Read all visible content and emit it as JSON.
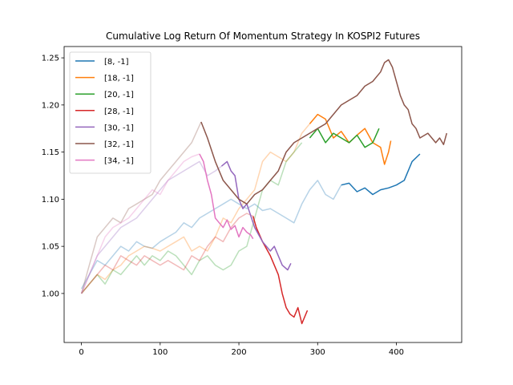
{
  "chart_data": {
    "type": "line",
    "title": "Cumulative Log Return Of Momentum Strategy In KOSPI2 Futures",
    "xlabel": "",
    "ylabel": "",
    "xlim": [
      -22,
      483
    ],
    "ylim": [
      0.948,
      1.262
    ],
    "xticks": [
      0,
      100,
      200,
      300,
      400
    ],
    "yticks": [
      1.0,
      1.05,
      1.1,
      1.15,
      1.2,
      1.25
    ],
    "ytick_labels": [
      "1.00",
      "1.05",
      "1.10",
      "1.15",
      "1.20",
      "1.25"
    ],
    "grid": false,
    "legend_position": "upper-left",
    "series": [
      {
        "name": "[8, -1]",
        "color": "#1f77b4",
        "faded_until": 330,
        "points": [
          [
            0,
            1.005
          ],
          [
            10,
            1.02
          ],
          [
            20,
            1.035
          ],
          [
            30,
            1.03
          ],
          [
            40,
            1.04
          ],
          [
            50,
            1.05
          ],
          [
            60,
            1.045
          ],
          [
            70,
            1.055
          ],
          [
            80,
            1.05
          ],
          [
            90,
            1.048
          ],
          [
            100,
            1.055
          ],
          [
            110,
            1.06
          ],
          [
            120,
            1.065
          ],
          [
            130,
            1.075
          ],
          [
            140,
            1.07
          ],
          [
            150,
            1.08
          ],
          [
            160,
            1.085
          ],
          [
            170,
            1.09
          ],
          [
            180,
            1.095
          ],
          [
            190,
            1.1
          ],
          [
            200,
            1.095
          ],
          [
            210,
            1.09
          ],
          [
            220,
            1.095
          ],
          [
            230,
            1.088
          ],
          [
            240,
            1.09
          ],
          [
            250,
            1.085
          ],
          [
            260,
            1.08
          ],
          [
            270,
            1.075
          ],
          [
            280,
            1.095
          ],
          [
            290,
            1.11
          ],
          [
            300,
            1.12
          ],
          [
            310,
            1.105
          ],
          [
            320,
            1.1
          ],
          [
            330,
            1.115
          ],
          [
            340,
            1.117
          ],
          [
            350,
            1.108
          ],
          [
            360,
            1.112
          ],
          [
            370,
            1.105
          ],
          [
            380,
            1.11
          ],
          [
            390,
            1.112
          ],
          [
            400,
            1.115
          ],
          [
            410,
            1.12
          ],
          [
            420,
            1.14
          ],
          [
            430,
            1.148
          ]
        ]
      },
      {
        "name": "[18, -1]",
        "color": "#ff7f0e",
        "faded_until": 290,
        "points": [
          [
            0,
            1.0
          ],
          [
            10,
            1.01
          ],
          [
            20,
            1.02
          ],
          [
            30,
            1.015
          ],
          [
            40,
            1.025
          ],
          [
            50,
            1.03
          ],
          [
            60,
            1.04
          ],
          [
            70,
            1.045
          ],
          [
            80,
            1.05
          ],
          [
            90,
            1.048
          ],
          [
            100,
            1.045
          ],
          [
            110,
            1.05
          ],
          [
            120,
            1.055
          ],
          [
            130,
            1.06
          ],
          [
            140,
            1.045
          ],
          [
            150,
            1.05
          ],
          [
            160,
            1.045
          ],
          [
            170,
            1.06
          ],
          [
            180,
            1.08
          ],
          [
            190,
            1.075
          ],
          [
            200,
            1.09
          ],
          [
            210,
            1.1
          ],
          [
            220,
            1.11
          ],
          [
            230,
            1.14
          ],
          [
            240,
            1.15
          ],
          [
            250,
            1.145
          ],
          [
            260,
            1.14
          ],
          [
            270,
            1.15
          ],
          [
            280,
            1.17
          ],
          [
            290,
            1.18
          ],
          [
            300,
            1.19
          ],
          [
            310,
            1.185
          ],
          [
            320,
            1.165
          ],
          [
            330,
            1.172
          ],
          [
            340,
            1.16
          ],
          [
            350,
            1.168
          ],
          [
            360,
            1.175
          ],
          [
            370,
            1.16
          ],
          [
            380,
            1.155
          ],
          [
            385,
            1.137
          ],
          [
            390,
            1.15
          ],
          [
            393,
            1.162
          ]
        ]
      },
      {
        "name": "[20, -1]",
        "color": "#2ca02c",
        "faded_until": 282,
        "points": [
          [
            0,
            1.0
          ],
          [
            10,
            1.01
          ],
          [
            20,
            1.02
          ],
          [
            30,
            1.01
          ],
          [
            40,
            1.025
          ],
          [
            50,
            1.02
          ],
          [
            60,
            1.03
          ],
          [
            70,
            1.04
          ],
          [
            80,
            1.03
          ],
          [
            90,
            1.04
          ],
          [
            100,
            1.035
          ],
          [
            110,
            1.045
          ],
          [
            120,
            1.04
          ],
          [
            130,
            1.03
          ],
          [
            140,
            1.02
          ],
          [
            150,
            1.035
          ],
          [
            160,
            1.04
          ],
          [
            170,
            1.03
          ],
          [
            180,
            1.025
          ],
          [
            190,
            1.03
          ],
          [
            200,
            1.045
          ],
          [
            210,
            1.05
          ],
          [
            220,
            1.08
          ],
          [
            230,
            1.11
          ],
          [
            240,
            1.12
          ],
          [
            250,
            1.115
          ],
          [
            260,
            1.14
          ],
          [
            270,
            1.15
          ],
          [
            280,
            1.16
          ],
          [
            290,
            1.165
          ],
          [
            300,
            1.175
          ],
          [
            310,
            1.16
          ],
          [
            320,
            1.17
          ],
          [
            330,
            1.165
          ],
          [
            340,
            1.16
          ],
          [
            350,
            1.168
          ],
          [
            360,
            1.155
          ],
          [
            370,
            1.16
          ],
          [
            378,
            1.175
          ]
        ]
      },
      {
        "name": "[28, -1]",
        "color": "#d62728",
        "faded_until": 218,
        "points": [
          [
            0,
            1.0
          ],
          [
            10,
            1.01
          ],
          [
            20,
            1.02
          ],
          [
            30,
            1.03
          ],
          [
            40,
            1.025
          ],
          [
            50,
            1.04
          ],
          [
            60,
            1.035
          ],
          [
            70,
            1.03
          ],
          [
            80,
            1.04
          ],
          [
            90,
            1.035
          ],
          [
            100,
            1.03
          ],
          [
            110,
            1.035
          ],
          [
            120,
            1.03
          ],
          [
            130,
            1.025
          ],
          [
            140,
            1.04
          ],
          [
            150,
            1.035
          ],
          [
            160,
            1.05
          ],
          [
            170,
            1.06
          ],
          [
            180,
            1.055
          ],
          [
            190,
            1.07
          ],
          [
            200,
            1.08
          ],
          [
            210,
            1.085
          ],
          [
            218,
            1.082
          ],
          [
            222,
            1.07
          ],
          [
            230,
            1.055
          ],
          [
            240,
            1.04
          ],
          [
            250,
            1.02
          ],
          [
            255,
            1.0
          ],
          [
            260,
            0.985
          ],
          [
            265,
            0.978
          ],
          [
            270,
            0.975
          ],
          [
            275,
            0.985
          ],
          [
            280,
            0.968
          ],
          [
            287,
            0.982
          ]
        ]
      },
      {
        "name": "[30, -1]",
        "color": "#9467bd",
        "faded_until": 178,
        "points": [
          [
            0,
            1.0
          ],
          [
            10,
            1.02
          ],
          [
            20,
            1.04
          ],
          [
            30,
            1.05
          ],
          [
            40,
            1.06
          ],
          [
            50,
            1.07
          ],
          [
            60,
            1.075
          ],
          [
            70,
            1.08
          ],
          [
            80,
            1.09
          ],
          [
            90,
            1.1
          ],
          [
            100,
            1.11
          ],
          [
            110,
            1.12
          ],
          [
            120,
            1.125
          ],
          [
            130,
            1.13
          ],
          [
            140,
            1.135
          ],
          [
            150,
            1.14
          ],
          [
            160,
            1.125
          ],
          [
            170,
            1.13
          ],
          [
            178,
            1.135
          ],
          [
            185,
            1.14
          ],
          [
            190,
            1.13
          ],
          [
            195,
            1.125
          ],
          [
            200,
            1.1
          ],
          [
            205,
            1.09
          ],
          [
            210,
            1.095
          ],
          [
            220,
            1.07
          ],
          [
            230,
            1.055
          ],
          [
            240,
            1.045
          ],
          [
            245,
            1.05
          ],
          [
            250,
            1.04
          ],
          [
            255,
            1.03
          ],
          [
            262,
            1.025
          ],
          [
            266,
            1.032
          ]
        ]
      },
      {
        "name": "[32, -1]",
        "color": "#8c564b",
        "faded_until": 152,
        "points": [
          [
            0,
            1.0
          ],
          [
            10,
            1.03
          ],
          [
            20,
            1.06
          ],
          [
            30,
            1.07
          ],
          [
            40,
            1.08
          ],
          [
            50,
            1.075
          ],
          [
            60,
            1.09
          ],
          [
            70,
            1.095
          ],
          [
            80,
            1.1
          ],
          [
            90,
            1.105
          ],
          [
            100,
            1.12
          ],
          [
            110,
            1.13
          ],
          [
            120,
            1.14
          ],
          [
            130,
            1.15
          ],
          [
            140,
            1.16
          ],
          [
            152,
            1.182
          ],
          [
            160,
            1.165
          ],
          [
            170,
            1.14
          ],
          [
            180,
            1.12
          ],
          [
            190,
            1.11
          ],
          [
            200,
            1.1
          ],
          [
            210,
            1.095
          ],
          [
            220,
            1.105
          ],
          [
            230,
            1.11
          ],
          [
            240,
            1.12
          ],
          [
            250,
            1.13
          ],
          [
            260,
            1.15
          ],
          [
            270,
            1.16
          ],
          [
            280,
            1.165
          ],
          [
            290,
            1.17
          ],
          [
            300,
            1.175
          ],
          [
            310,
            1.18
          ],
          [
            320,
            1.19
          ],
          [
            330,
            1.2
          ],
          [
            340,
            1.205
          ],
          [
            350,
            1.21
          ],
          [
            360,
            1.22
          ],
          [
            370,
            1.225
          ],
          [
            380,
            1.235
          ],
          [
            385,
            1.245
          ],
          [
            390,
            1.248
          ],
          [
            395,
            1.24
          ],
          [
            400,
            1.225
          ],
          [
            405,
            1.21
          ],
          [
            410,
            1.2
          ],
          [
            415,
            1.195
          ],
          [
            420,
            1.18
          ],
          [
            425,
            1.175
          ],
          [
            430,
            1.165
          ],
          [
            440,
            1.17
          ],
          [
            450,
            1.16
          ],
          [
            455,
            1.165
          ],
          [
            460,
            1.158
          ],
          [
            464,
            1.17
          ]
        ]
      },
      {
        "name": "[34, -1]",
        "color": "#e377c2",
        "faded_until": 150,
        "points": [
          [
            0,
            1.0
          ],
          [
            10,
            1.02
          ],
          [
            20,
            1.04
          ],
          [
            30,
            1.06
          ],
          [
            40,
            1.07
          ],
          [
            50,
            1.075
          ],
          [
            60,
            1.08
          ],
          [
            70,
            1.09
          ],
          [
            80,
            1.1
          ],
          [
            90,
            1.11
          ],
          [
            100,
            1.105
          ],
          [
            110,
            1.12
          ],
          [
            120,
            1.13
          ],
          [
            130,
            1.14
          ],
          [
            140,
            1.145
          ],
          [
            150,
            1.148
          ],
          [
            155,
            1.14
          ],
          [
            160,
            1.12
          ],
          [
            165,
            1.105
          ],
          [
            170,
            1.08
          ],
          [
            175,
            1.075
          ],
          [
            180,
            1.07
          ],
          [
            185,
            1.078
          ],
          [
            190,
            1.068
          ],
          [
            195,
            1.072
          ],
          [
            200,
            1.06
          ],
          [
            205,
            1.07
          ],
          [
            210,
            1.065
          ],
          [
            215,
            1.062
          ],
          [
            218,
            1.058
          ]
        ]
      }
    ]
  }
}
